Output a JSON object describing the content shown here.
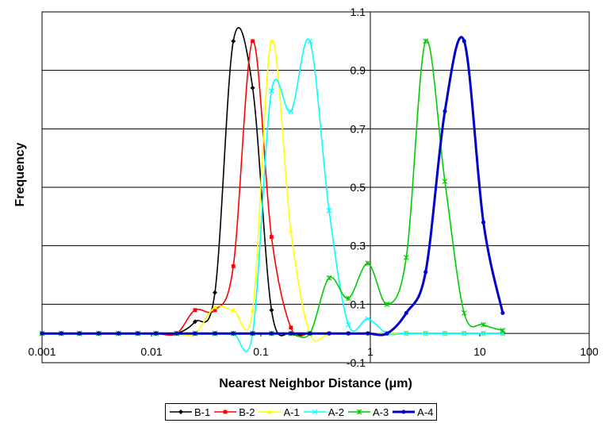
{
  "chart_data": {
    "type": "line",
    "xlabel": "Nearest Neighbor Distance (μm)",
    "ylabel": "Frequency",
    "x_scale": "log",
    "xlim": [
      0.001,
      100
    ],
    "ylim": [
      -0.1,
      1.1
    ],
    "x_ticks": [
      "0.001",
      "0.01",
      "0.1",
      "1",
      "10",
      "100"
    ],
    "y_ticks": [
      "-0.1",
      "0.1",
      "0.3",
      "0.5",
      "0.7",
      "0.9",
      "1.1"
    ],
    "legend_position": "bottom",
    "grid": "horizontal",
    "x": [
      0.001,
      0.0015,
      0.0022,
      0.0033,
      0.005,
      0.0075,
      0.011,
      0.017,
      0.025,
      0.038,
      0.056,
      0.084,
      0.125,
      0.188,
      0.28,
      0.42,
      0.63,
      0.95,
      1.42,
      2.13,
      3.2,
      4.8,
      7.2,
      10.8,
      16.2
    ],
    "series": [
      {
        "name": "B-1",
        "color": "#000000",
        "marker": "diamond",
        "values": [
          0,
          0,
          0,
          0,
          0,
          0,
          0,
          0,
          0.04,
          0.14,
          1.0,
          0.84,
          0.08,
          0,
          0,
          0,
          0,
          0,
          0,
          0,
          0,
          0,
          0,
          0,
          0
        ]
      },
      {
        "name": "B-2",
        "color": "#ff0000",
        "marker": "square",
        "values": [
          0,
          0,
          0,
          0,
          0,
          0,
          0,
          0,
          0.08,
          0.08,
          0.23,
          1.0,
          0.33,
          0.02,
          0,
          0,
          0,
          0,
          0,
          0,
          0,
          0,
          0,
          0,
          0
        ]
      },
      {
        "name": "A-1",
        "color": "#ffff00",
        "marker": "triangle",
        "values": [
          0,
          0,
          0,
          0,
          0,
          0,
          0,
          0,
          0,
          0.09,
          0.08,
          0.08,
          1.0,
          0.35,
          0,
          0,
          0,
          0,
          0,
          0,
          0,
          0,
          0,
          0,
          0
        ]
      },
      {
        "name": "A-2",
        "color": "#00ffff",
        "marker": "x",
        "values": [
          0,
          0,
          0,
          0,
          0,
          0,
          0,
          0,
          0,
          0,
          0,
          0,
          0.83,
          0.76,
          1.0,
          0.42,
          0.03,
          0.05,
          0,
          0,
          0,
          0,
          0,
          0,
          0
        ]
      },
      {
        "name": "A-3",
        "color": "#00cc00",
        "marker": "star",
        "values": [
          0,
          0,
          0,
          0,
          0,
          0,
          0,
          0,
          0,
          0,
          0,
          0,
          0,
          0,
          0,
          0.19,
          0.12,
          0.24,
          0.1,
          0.26,
          1.0,
          0.52,
          0.07,
          0.03,
          0.01
        ]
      },
      {
        "name": "A-4",
        "color": "#0000cc",
        "marker": "circle",
        "values": [
          0,
          0,
          0,
          0,
          0,
          0,
          0,
          0,
          0,
          0,
          0,
          0,
          0,
          0,
          0,
          0,
          0,
          0,
          0,
          0.07,
          0.21,
          0.76,
          1.0,
          0.38,
          0.07
        ]
      }
    ]
  }
}
